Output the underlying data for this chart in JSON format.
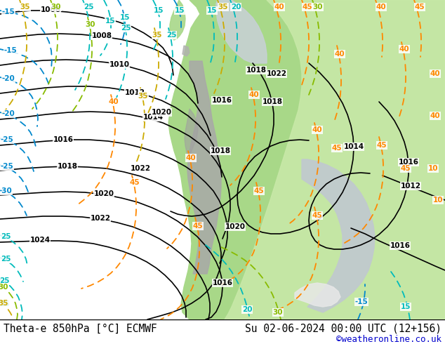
{
  "title_left": "Theta-e 850hPa [°C] ECMWF",
  "title_right": "Su 02-06-2024 00:00 UTC (12+156)",
  "copyright": "©weatheronline.co.uk",
  "bg_gray": "#c8c8c8",
  "bg_light": "#e8e8f0",
  "bottom_bar_color": "#ffffff",
  "copyright_color": "#0000cc",
  "green_land": "#a8d888",
  "green_light": "#c8e8a8"
}
